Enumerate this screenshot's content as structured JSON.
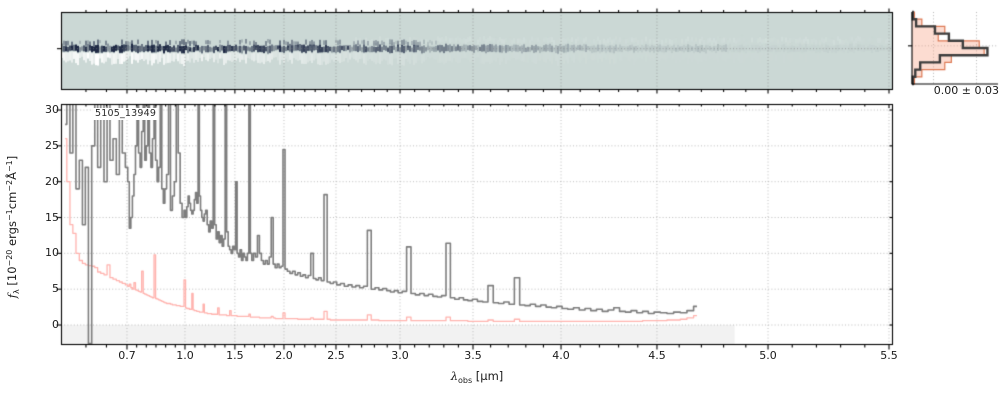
{
  "figure": {
    "kind": "astronomical spectrum figure",
    "background": "#ffffff"
  },
  "labels": {
    "object_id": "5105_13949",
    "hist_stat": "0.00 ± 0.03",
    "xlabel": {
      "symbol": "λ",
      "sub": "obs",
      "unit": " [μm]"
    },
    "ylabel": {
      "f": "f",
      "sub": "λ",
      "b1": " [10",
      "e1": "−20",
      "u1": " ergs",
      "e2": "−1",
      "u2": "cm",
      "e3": "−2",
      "u3": "Å",
      "e4": "−1",
      "b2": "]"
    }
  },
  "chart_data": [
    {
      "type": "heatmap",
      "name": "2d-spectrum-panel",
      "description": "2D rectified spectrum strip; dark trace at center with white negative band below, signal fading toward red wavelengths",
      "bg_color": "#cbd8d5",
      "trace_color": "#1f2a45",
      "negative_color": "#ffffff",
      "tint_color": "#e2ecea",
      "trace_center_frac": 0.47,
      "xlim_um": [
        0.54,
        5.52
      ],
      "grid": "dotted"
    },
    {
      "type": "bar",
      "name": "pixel-value-histogram",
      "orientation": "horizontal",
      "annotation": "0.00 ± 0.03",
      "bins_top_to_bottom": 10,
      "series": [
        {
          "name": "science",
          "color": "#3d3d3d",
          "values": [
            0.01,
            0.05,
            0.28,
            0.45,
            0.62,
            0.92,
            0.34,
            0.1,
            0.04,
            0.01
          ]
        },
        {
          "name": "error",
          "color": "#dd7a55",
          "fill": "rgba(248,168,140,0.40)",
          "values": [
            0.03,
            0.12,
            0.4,
            0.32,
            0.82,
            0.88,
            0.48,
            0.4,
            0.12,
            0.03
          ]
        }
      ],
      "gridline_fracs_x": [
        0.25,
        0.75
      ],
      "center_line_frac_y": 0.47
    },
    {
      "type": "line",
      "name": "1d-extracted-spectrum",
      "title": "5105_13949",
      "xlabel": "λ_obs [μm]",
      "ylabel": "f_λ [10^−20 ergs^−1 cm^−2 Å^−1]",
      "xlim": [
        0.54,
        5.52
      ],
      "ylim": [
        -2.79,
        30.84
      ],
      "grid": "dotted",
      "xticks": [
        0.7,
        1.0,
        1.5,
        2.0,
        2.5,
        3.0,
        3.5,
        4.0,
        4.5,
        5.0,
        5.5
      ],
      "xticklabels": [
        "0.7",
        "1.0",
        "1.5",
        "2.0",
        "2.5",
        "3.0",
        "3.5",
        "4.0",
        "4.5",
        "5.0",
        "5.5"
      ],
      "yticks": [
        0,
        5,
        10,
        15,
        20,
        25,
        30
      ],
      "yticklabels": [
        "0",
        "5",
        "10",
        "15",
        "20",
        "25",
        "30"
      ],
      "x_anchor_fracs": [
        [
          0.54,
          0.0
        ],
        [
          0.6,
          0.03
        ],
        [
          0.7,
          0.0793
        ],
        [
          1.0,
          0.149
        ],
        [
          1.5,
          0.209
        ],
        [
          2.0,
          0.268
        ],
        [
          2.5,
          0.3305
        ],
        [
          3.0,
          0.4075
        ],
        [
          3.5,
          0.4952
        ],
        [
          4.0,
          0.601
        ],
        [
          4.5,
          0.7163
        ],
        [
          5.0,
          0.8498
        ],
        [
          5.5,
          0.9952
        ],
        [
          5.52,
          1.0
        ]
      ],
      "shaded_region": {
        "x_um": [
          0.54,
          4.85
        ],
        "y": "below 0",
        "color": "rgba(0,0,0,0.05)"
      },
      "series": [
        {
          "name": "science spectrum",
          "color": "#7d7d7d",
          "style": "step",
          "linewidth": 1.6
        },
        {
          "name": "1-sigma error",
          "color": "#ffb3ae",
          "style": "step",
          "linewidth": 1.3
        }
      ],
      "x": [
        0.55,
        0.558,
        0.565,
        0.572,
        0.58,
        0.588,
        0.595,
        0.602,
        0.61,
        0.618,
        0.625,
        0.632,
        0.64,
        0.648,
        0.655,
        0.662,
        0.67,
        0.678,
        0.685,
        0.692,
        0.7,
        0.708,
        0.716,
        0.724,
        0.732,
        0.74,
        0.748,
        0.756,
        0.764,
        0.772,
        0.78,
        0.788,
        0.796,
        0.804,
        0.812,
        0.82,
        0.828,
        0.836,
        0.844,
        0.852,
        0.86,
        0.868,
        0.876,
        0.884,
        0.892,
        0.9,
        0.91,
        0.92,
        0.93,
        0.94,
        0.95,
        0.96,
        0.97,
        0.98,
        0.99,
        1.0,
        1.012,
        1.025,
        1.038,
        1.05,
        1.062,
        1.075,
        1.088,
        1.1,
        1.112,
        1.125,
        1.138,
        1.15,
        1.162,
        1.175,
        1.188,
        1.2,
        1.215,
        1.23,
        1.245,
        1.26,
        1.275,
        1.29,
        1.305,
        1.32,
        1.335,
        1.35,
        1.365,
        1.38,
        1.395,
        1.41,
        1.425,
        1.44,
        1.455,
        1.47,
        1.485,
        1.5,
        1.515,
        1.53,
        1.545,
        1.56,
        1.575,
        1.59,
        1.605,
        1.62,
        1.635,
        1.65,
        1.665,
        1.68,
        1.7,
        1.72,
        1.74,
        1.76,
        1.78,
        1.8,
        1.82,
        1.84,
        1.86,
        1.88,
        1.9,
        1.92,
        1.94,
        1.96,
        1.98,
        2.0,
        2.02,
        2.045,
        2.07,
        2.095,
        2.12,
        2.145,
        2.17,
        2.195,
        2.22,
        2.245,
        2.27,
        2.295,
        2.32,
        2.345,
        2.37,
        2.4,
        2.43,
        2.46,
        2.49,
        2.52,
        2.55,
        2.58,
        2.61,
        2.64,
        2.67,
        2.7,
        2.73,
        2.76,
        2.79,
        2.82,
        2.85,
        2.88,
        2.91,
        2.94,
        2.97,
        3.0,
        3.03,
        3.06,
        3.09,
        3.12,
        3.15,
        3.18,
        3.21,
        3.24,
        3.27,
        3.3,
        3.33,
        3.36,
        3.39,
        3.42,
        3.45,
        3.48,
        3.51,
        3.54,
        3.57,
        3.6,
        3.63,
        3.66,
        3.69,
        3.72,
        3.75,
        3.78,
        3.81,
        3.84,
        3.87,
        3.9,
        3.93,
        3.96,
        3.99,
        4.02,
        4.05,
        4.08,
        4.11,
        4.14,
        4.17,
        4.2,
        4.23,
        4.26,
        4.29,
        4.32,
        4.35,
        4.38,
        4.41,
        4.44,
        4.47,
        4.5,
        4.53,
        4.56,
        4.59,
        4.62,
        4.65,
        4.68
      ],
      "y_science": [
        28,
        32,
        24,
        32,
        19,
        23,
        14,
        22,
        -2.6,
        25,
        32,
        22,
        32,
        20,
        32,
        23,
        26,
        21,
        32,
        24,
        22,
        20,
        13.5,
        15,
        18,
        21,
        25,
        32,
        24,
        22,
        27,
        32,
        23,
        25,
        32,
        24,
        22,
        26,
        32,
        23,
        20,
        22,
        32,
        19,
        17,
        19,
        21,
        32,
        16,
        18,
        20,
        32,
        24,
        17,
        15,
        16,
        15,
        16.5,
        18,
        17,
        16,
        15.5,
        16,
        17.5,
        18.5,
        17,
        32,
        18,
        16,
        15,
        14.5,
        15.5,
        16,
        14,
        13,
        14.5,
        13.5,
        32,
        14,
        12,
        13,
        11.5,
        12.5,
        11,
        12,
        32,
        13,
        11,
        10.5,
        10,
        11,
        10.5,
        20,
        10,
        9.5,
        10.5,
        9,
        10,
        9.5,
        9,
        10,
        32,
        10,
        9,
        10,
        9.5,
        12.5,
        10,
        9,
        8.5,
        9,
        8.5,
        9.5,
        15,
        8.5,
        8,
        8.5,
        8,
        8.2,
        24.5,
        7.8,
        7.5,
        7.2,
        7.5,
        7.0,
        7.3,
        6.8,
        7.0,
        6.6,
        6.9,
        10.0,
        6.5,
        6.3,
        6.6,
        6.2,
        18.2,
        6.0,
        5.8,
        6.0,
        5.6,
        5.8,
        5.4,
        5.6,
        5.3,
        5.5,
        5.2,
        5.4,
        13.2,
        5.0,
        5.2,
        4.9,
        5.1,
        4.8,
        4.6,
        4.8,
        4.5,
        4.7,
        10.9,
        4.4,
        4.2,
        4.4,
        4.1,
        4.3,
        4.0,
        3.9,
        4.1,
        11.4,
        3.8,
        3.6,
        3.8,
        3.5,
        3.4,
        3.6,
        3.3,
        3.2,
        5.5,
        3.1,
        3.0,
        3.2,
        2.9,
        6.6,
        2.8,
        2.7,
        2.9,
        2.6,
        2.8,
        2.5,
        2.4,
        2.6,
        2.3,
        2.2,
        2.4,
        2.1,
        2.3,
        2.0,
        2.2,
        1.9,
        2.1,
        2.4,
        1.9,
        1.8,
        2.0,
        1.7,
        1.9,
        1.6,
        1.8,
        1.7,
        1.6,
        1.8,
        1.7,
        2.0,
        2.6
      ],
      "y_error": [
        26,
        20,
        14,
        12.8,
        10,
        9,
        8.6,
        8.4,
        8.3,
        8.2,
        8.0,
        7.4,
        7.2,
        7.0,
        8.4,
        6.6,
        6.4,
        6.2,
        6.0,
        5.8,
        5.6,
        5.4,
        5.7,
        5.2,
        5.0,
        5.9,
        4.9,
        4.8,
        4.7,
        4.6,
        7.5,
        4.4,
        4.3,
        4.2,
        4.1,
        4.0,
        3.9,
        3.8,
        9.8,
        3.7,
        3.6,
        3.5,
        3.4,
        3.3,
        3.2,
        3.1,
        3.0,
        3.0,
        2.9,
        2.8,
        2.8,
        2.7,
        2.7,
        2.6,
        2.6,
        6.3,
        2.4,
        2.3,
        2.3,
        2.2,
        2.2,
        4.4,
        2.1,
        2.0,
        2.0,
        1.9,
        1.9,
        1.8,
        1.8,
        1.8,
        2.9,
        1.7,
        1.7,
        1.6,
        1.6,
        1.6,
        1.5,
        1.5,
        1.5,
        1.5,
        2.4,
        1.4,
        1.4,
        1.4,
        1.4,
        1.4,
        1.3,
        1.3,
        2.0,
        1.3,
        1.3,
        1.3,
        1.3,
        1.2,
        1.2,
        1.2,
        1.2,
        1.2,
        1.2,
        1.2,
        1.2,
        1.5,
        1.1,
        1.1,
        1.1,
        1.1,
        1.1,
        1.0,
        1.0,
        1.0,
        1.0,
        1.0,
        1.0,
        1.2,
        1.0,
        0.9,
        0.9,
        0.9,
        0.9,
        1.7,
        0.9,
        0.9,
        0.9,
        0.9,
        0.9,
        0.8,
        0.8,
        0.8,
        0.8,
        0.8,
        1.0,
        0.8,
        0.8,
        0.8,
        0.8,
        1.9,
        0.8,
        0.7,
        0.7,
        0.7,
        0.7,
        0.7,
        0.7,
        0.7,
        0.7,
        0.7,
        0.7,
        1.4,
        0.7,
        0.7,
        0.6,
        0.6,
        0.6,
        0.6,
        0.6,
        0.6,
        0.6,
        1.1,
        0.6,
        0.6,
        0.6,
        0.6,
        0.6,
        0.6,
        0.6,
        0.6,
        1.1,
        0.6,
        0.6,
        0.6,
        0.6,
        0.5,
        0.5,
        0.5,
        0.5,
        0.7,
        0.5,
        0.5,
        0.5,
        0.5,
        0.8,
        0.5,
        0.5,
        0.5,
        0.5,
        0.5,
        0.5,
        0.5,
        0.5,
        0.5,
        0.5,
        0.5,
        0.5,
        0.5,
        0.5,
        0.5,
        0.5,
        0.5,
        0.5,
        0.5,
        0.5,
        0.5,
        0.5,
        0.6,
        0.6,
        0.6,
        0.6,
        0.7,
        0.7,
        0.8,
        1.0,
        1.3
      ]
    }
  ]
}
